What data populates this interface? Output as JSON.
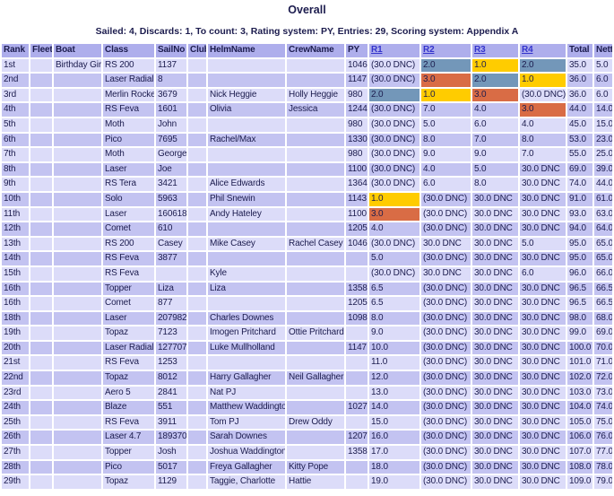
{
  "page": {
    "title": "Overall",
    "summary": "Sailed: 4, Discards: 1, To count: 3, Rating system: PY, Entries: 29, Scoring system: Appendix A"
  },
  "colors": {
    "text": "#1c1c4e",
    "header_bg": "#aeaeec",
    "row_light": "#dcdcf9",
    "row_dark": "#c3c3f1",
    "place1": "#ffcc00",
    "place2": "#7397b9",
    "place3": "#d96c45",
    "link": "#3333cc",
    "page_bg": "#ffffff"
  },
  "table": {
    "columns": [
      "Rank",
      "Fleet",
      "Boat",
      "Class",
      "SailNo",
      "Club",
      "HelmName",
      "CrewName",
      "PY",
      "R1",
      "R2",
      "R3",
      "R4",
      "Total",
      "Nett"
    ],
    "race_link_columns": [
      "R1",
      "R2",
      "R3",
      "R4"
    ],
    "rows": [
      {
        "cells": [
          "1st",
          "",
          "Birthday Girl",
          "RS 200",
          "1137",
          "",
          "",
          "",
          "1046",
          "(30.0 DNC)",
          "2.0",
          "1.0",
          "2.0",
          "35.0",
          "5.0"
        ],
        "highlights": {
          "10": "second",
          "11": "first",
          "12": "second"
        }
      },
      {
        "cells": [
          "2nd",
          "",
          "",
          "Laser Radial",
          "8",
          "",
          "",
          "",
          "1147",
          "(30.0 DNC)",
          "3.0",
          "2.0",
          "1.0",
          "36.0",
          "6.0"
        ],
        "highlights": {
          "10": "third",
          "11": "second",
          "12": "first"
        }
      },
      {
        "cells": [
          "3rd",
          "",
          "",
          "Merlin Rocket",
          "3679",
          "",
          "Nick Heggie",
          "Holly Heggie",
          "980",
          "2.0",
          "1.0",
          "3.0",
          "(30.0 DNC)",
          "36.0",
          "6.0"
        ],
        "highlights": {
          "9": "second",
          "10": "first",
          "11": "third"
        }
      },
      {
        "cells": [
          "4th",
          "",
          "",
          "RS Feva",
          "1601",
          "",
          "Olivia",
          "Jessica",
          "1244",
          "(30.0 DNC)",
          "7.0",
          "4.0",
          "3.0",
          "44.0",
          "14.0"
        ],
        "highlights": {
          "12": "third"
        }
      },
      {
        "cells": [
          "5th",
          "",
          "",
          "Moth",
          "John",
          "",
          "",
          "",
          "980",
          "(30.0 DNC)",
          "5.0",
          "6.0",
          "4.0",
          "45.0",
          "15.0"
        ],
        "highlights": {}
      },
      {
        "cells": [
          "6th",
          "",
          "",
          "Pico",
          "7695",
          "",
          "Rachel/Max",
          "",
          "1330",
          "(30.0 DNC)",
          "8.0",
          "7.0",
          "8.0",
          "53.0",
          "23.0"
        ],
        "highlights": {}
      },
      {
        "cells": [
          "7th",
          "",
          "",
          "Moth",
          "George",
          "",
          "",
          "",
          "980",
          "(30.0 DNC)",
          "9.0",
          "9.0",
          "7.0",
          "55.0",
          "25.0"
        ],
        "highlights": {}
      },
      {
        "cells": [
          "8th",
          "",
          "",
          "Laser",
          "Joe",
          "",
          "",
          "",
          "1100",
          "(30.0 DNC)",
          "4.0",
          "5.0",
          "30.0 DNC",
          "69.0",
          "39.0"
        ],
        "highlights": {}
      },
      {
        "cells": [
          "9th",
          "",
          "",
          "RS Tera",
          "3421",
          "",
          "Alice Edwards",
          "",
          "1364",
          "(30.0 DNC)",
          "6.0",
          "8.0",
          "30.0 DNC",
          "74.0",
          "44.0"
        ],
        "highlights": {}
      },
      {
        "cells": [
          "10th",
          "",
          "",
          "Solo",
          "5963",
          "",
          "Phil Snewin",
          "",
          "1143",
          "1.0",
          "(30.0 DNC)",
          "30.0 DNC",
          "30.0 DNC",
          "91.0",
          "61.0"
        ],
        "highlights": {
          "9": "first"
        }
      },
      {
        "cells": [
          "11th",
          "",
          "",
          "Laser",
          "160618",
          "",
          "Andy Hateley",
          "",
          "1100",
          "3.0",
          "(30.0 DNC)",
          "30.0 DNC",
          "30.0 DNC",
          "93.0",
          "63.0"
        ],
        "highlights": {
          "9": "third"
        }
      },
      {
        "cells": [
          "12th",
          "",
          "",
          "Comet",
          "610",
          "",
          "",
          "",
          "1205",
          "4.0",
          "(30.0 DNC)",
          "30.0 DNC",
          "30.0 DNC",
          "94.0",
          "64.0"
        ],
        "highlights": {}
      },
      {
        "cells": [
          "13th",
          "",
          "",
          "RS 200",
          "Casey",
          "",
          "Mike Casey",
          "Rachel Casey",
          "1046",
          "(30.0 DNC)",
          "30.0 DNC",
          "30.0 DNC",
          "5.0",
          "95.0",
          "65.0"
        ],
        "highlights": {}
      },
      {
        "cells": [
          "14th",
          "",
          "",
          "RS Feva",
          "3877",
          "",
          "",
          "",
          "",
          "5.0",
          "(30.0 DNC)",
          "30.0 DNC",
          "30.0 DNC",
          "95.0",
          "65.0"
        ],
        "highlights": {}
      },
      {
        "cells": [
          "15th",
          "",
          "",
          "RS Feva",
          "",
          "",
          "Kyle",
          "",
          "",
          "(30.0 DNC)",
          "30.0 DNC",
          "30.0 DNC",
          "6.0",
          "96.0",
          "66.0"
        ],
        "highlights": {}
      },
      {
        "cells": [
          "16th",
          "",
          "",
          "Topper",
          "Liza",
          "",
          "Liza",
          "",
          "1358",
          "6.5",
          "(30.0 DNC)",
          "30.0 DNC",
          "30.0 DNC",
          "96.5",
          "66.5"
        ],
        "highlights": {}
      },
      {
        "cells": [
          "16th",
          "",
          "",
          "Comet",
          "877",
          "",
          "",
          "",
          "1205",
          "6.5",
          "(30.0 DNC)",
          "30.0 DNC",
          "30.0 DNC",
          "96.5",
          "66.5"
        ],
        "highlights": {}
      },
      {
        "cells": [
          "18th",
          "",
          "",
          "Laser",
          "207982",
          "",
          "Charles Downes",
          "",
          "1098",
          "8.0",
          "(30.0 DNC)",
          "30.0 DNC",
          "30.0 DNC",
          "98.0",
          "68.0"
        ],
        "highlights": {}
      },
      {
        "cells": [
          "19th",
          "",
          "",
          "Topaz",
          "7123",
          "",
          "Imogen Pritchard",
          "Ottie Pritchard",
          "",
          "9.0",
          "(30.0 DNC)",
          "30.0 DNC",
          "30.0 DNC",
          "99.0",
          "69.0"
        ],
        "highlights": {}
      },
      {
        "cells": [
          "20th",
          "",
          "",
          "Laser Radial",
          "127707",
          "",
          "Luke Mullholland",
          "",
          "1147",
          "10.0",
          "(30.0 DNC)",
          "30.0 DNC",
          "30.0 DNC",
          "100.0",
          "70.0"
        ],
        "highlights": {}
      },
      {
        "cells": [
          "21st",
          "",
          "",
          "RS Feva",
          "1253",
          "",
          "",
          "",
          "",
          "11.0",
          "(30.0 DNC)",
          "30.0 DNC",
          "30.0 DNC",
          "101.0",
          "71.0"
        ],
        "highlights": {}
      },
      {
        "cells": [
          "22nd",
          "",
          "",
          "Topaz",
          "8012",
          "",
          "Harry Gallagher",
          "Neil Gallagher",
          "",
          "12.0",
          "(30.0 DNC)",
          "30.0 DNC",
          "30.0 DNC",
          "102.0",
          "72.0"
        ],
        "highlights": {}
      },
      {
        "cells": [
          "23rd",
          "",
          "",
          "Aero 5",
          "2841",
          "",
          "Nat PJ",
          "",
          "",
          "13.0",
          "(30.0 DNC)",
          "30.0 DNC",
          "30.0 DNC",
          "103.0",
          "73.0"
        ],
        "highlights": {}
      },
      {
        "cells": [
          "24th",
          "",
          "",
          "Blaze",
          "551",
          "",
          "Matthew Waddington",
          "",
          "1027",
          "14.0",
          "(30.0 DNC)",
          "30.0 DNC",
          "30.0 DNC",
          "104.0",
          "74.0"
        ],
        "highlights": {}
      },
      {
        "cells": [
          "25th",
          "",
          "",
          "RS Feva",
          "3911",
          "",
          "Tom PJ",
          "Drew Oddy",
          "",
          "15.0",
          "(30.0 DNC)",
          "30.0 DNC",
          "30.0 DNC",
          "105.0",
          "75.0"
        ],
        "highlights": {}
      },
      {
        "cells": [
          "26th",
          "",
          "",
          "Laser 4.7",
          "189370",
          "",
          "Sarah Downes",
          "",
          "1207",
          "16.0",
          "(30.0 DNC)",
          "30.0 DNC",
          "30.0 DNC",
          "106.0",
          "76.0"
        ],
        "highlights": {}
      },
      {
        "cells": [
          "27th",
          "",
          "",
          "Topper",
          "Josh",
          "",
          "Joshua Waddington",
          "",
          "1358",
          "17.0",
          "(30.0 DNC)",
          "30.0 DNC",
          "30.0 DNC",
          "107.0",
          "77.0"
        ],
        "highlights": {}
      },
      {
        "cells": [
          "28th",
          "",
          "",
          "Pico",
          "5017",
          "",
          "Freya Gallagher",
          "Kitty Pope",
          "",
          "18.0",
          "(30.0 DNC)",
          "30.0 DNC",
          "30.0 DNC",
          "108.0",
          "78.0"
        ],
        "highlights": {}
      },
      {
        "cells": [
          "29th",
          "",
          "",
          "Topaz",
          "1129",
          "",
          "Taggie, Charlotte",
          "Hattie",
          "",
          "19.0",
          "(30.0 DNC)",
          "30.0 DNC",
          "30.0 DNC",
          "109.0",
          "79.0"
        ],
        "highlights": {}
      }
    ]
  }
}
